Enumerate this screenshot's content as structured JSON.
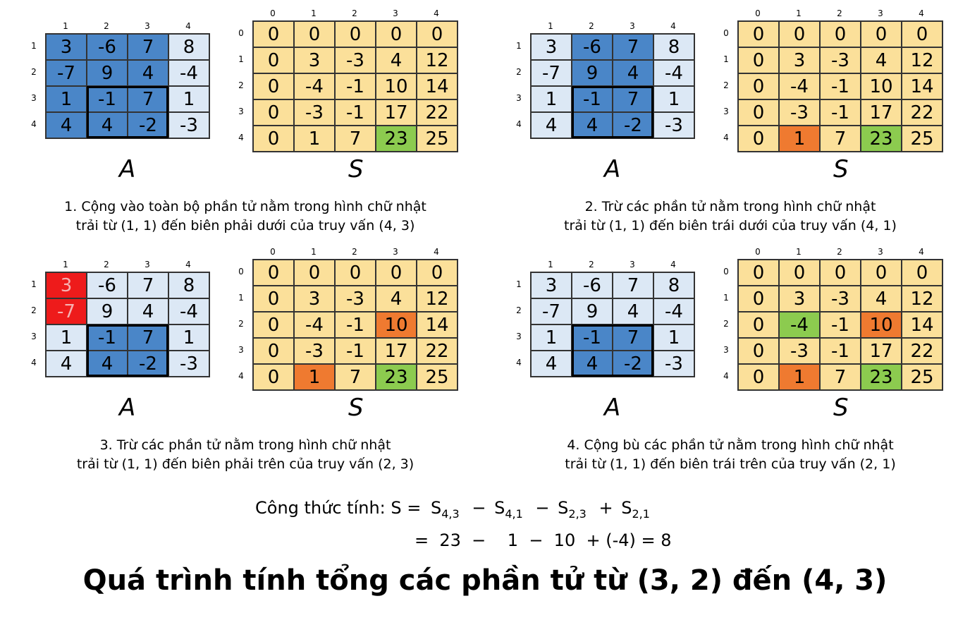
{
  "matrix_A": [
    [
      3,
      -6,
      7,
      8
    ],
    [
      -7,
      9,
      4,
      -4
    ],
    [
      1,
      -1,
      7,
      1
    ],
    [
      4,
      4,
      -2,
      -3
    ]
  ],
  "matrix_S": [
    [
      0,
      0,
      0,
      0,
      0
    ],
    [
      0,
      3,
      -3,
      4,
      12
    ],
    [
      0,
      -4,
      -1,
      10,
      14
    ],
    [
      0,
      -3,
      -1,
      17,
      22
    ],
    [
      0,
      1,
      7,
      23,
      25
    ]
  ],
  "headers_A": [
    "1",
    "2",
    "3",
    "4"
  ],
  "headers_S": [
    "0",
    "1",
    "2",
    "3",
    "4"
  ],
  "label_A": "A",
  "label_S": "S",
  "colors": {
    "light": "#dce8f5",
    "dark": "#4a86c8",
    "red": "#ee1b1b",
    "yellow": "#fbe09a",
    "orange": "#ef7a30",
    "green": "#8ccb4f"
  },
  "panels": [
    {
      "caption_line1": "1. Cộng vào toàn bộ phần tử nằm trong hình chữ nhật",
      "caption_line2": "trải từ (1, 1) đến biên phải dưới của truy vấn (4, 3)",
      "a_colors": [
        [
          "dark",
          "dark",
          "dark",
          "light"
        ],
        [
          "dark",
          "dark",
          "dark",
          "light"
        ],
        [
          "dark",
          "dark",
          "dark",
          "light"
        ],
        [
          "dark",
          "dark",
          "dark",
          "light"
        ]
      ],
      "s_highlight": [
        {
          "row": 4,
          "col": 3,
          "color": "green"
        }
      ]
    },
    {
      "caption_line1": "2. Trừ các phần tử nằm trong hình chữ nhật",
      "caption_line2": "trải từ (1, 1) đến biên trái dưới của truy vấn (4, 1)",
      "a_colors": [
        [
          "light",
          "dark",
          "dark",
          "light"
        ],
        [
          "light",
          "dark",
          "dark",
          "light"
        ],
        [
          "light",
          "dark",
          "dark",
          "light"
        ],
        [
          "light",
          "dark",
          "dark",
          "light"
        ]
      ],
      "s_highlight": [
        {
          "row": 4,
          "col": 1,
          "color": "orange"
        },
        {
          "row": 4,
          "col": 3,
          "color": "green"
        }
      ]
    },
    {
      "caption_line1": "3. Trừ các phần tử nằm trong hình chữ nhật",
      "caption_line2": "trải từ (1, 1) đến biên phải trên của truy vấn (2, 3)",
      "a_colors": [
        [
          "red",
          "light",
          "light",
          "light"
        ],
        [
          "red",
          "light",
          "light",
          "light"
        ],
        [
          "light",
          "dark",
          "dark",
          "light"
        ],
        [
          "light",
          "dark",
          "dark",
          "light"
        ]
      ],
      "s_highlight": [
        {
          "row": 2,
          "col": 3,
          "color": "orange"
        },
        {
          "row": 4,
          "col": 1,
          "color": "orange"
        },
        {
          "row": 4,
          "col": 3,
          "color": "green"
        }
      ]
    },
    {
      "caption_line1": "4. Cộng bù các phần tử nằm trong hình chữ nhật",
      "caption_line2": "trải từ (1, 1) đến biên trái trên của truy vấn (2, 1)",
      "a_colors": [
        [
          "light",
          "light",
          "light",
          "light"
        ],
        [
          "light",
          "light",
          "light",
          "light"
        ],
        [
          "light",
          "dark",
          "dark",
          "light"
        ],
        [
          "light",
          "dark",
          "dark",
          "light"
        ]
      ],
      "s_highlight": [
        {
          "row": 2,
          "col": 1,
          "color": "green"
        },
        {
          "row": 2,
          "col": 3,
          "color": "orange"
        },
        {
          "row": 4,
          "col": 1,
          "color": "orange"
        },
        {
          "row": 4,
          "col": 3,
          "color": "green"
        }
      ]
    }
  ],
  "formula": {
    "prefix": "Công thức tính: S =",
    "terms": [
      {
        "sign": "",
        "base": "S",
        "sub": "4,3"
      },
      {
        "sign": "−",
        "base": "S",
        "sub": "4,1"
      },
      {
        "sign": "−",
        "base": "S",
        "sub": "2,3"
      },
      {
        "sign": "+",
        "base": "S",
        "sub": "2,1"
      }
    ],
    "line2": "=  23  −    1  −  10  + (-4) = 8"
  },
  "title": "Quá trình tính tổng các phần tử từ (3, 2) đến (4, 3)"
}
